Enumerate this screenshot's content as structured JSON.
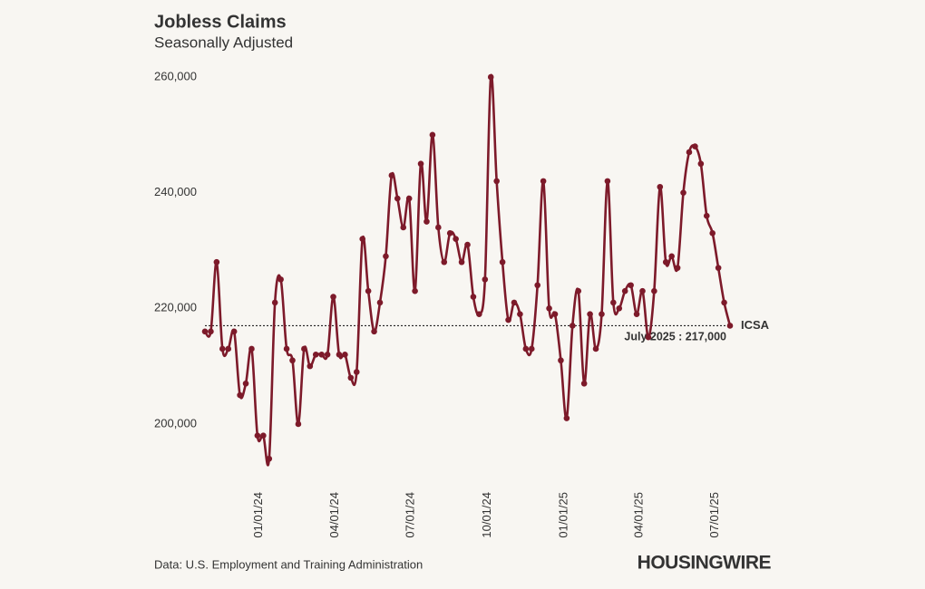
{
  "chart_data": {
    "type": "line",
    "title": "Jobless Claims",
    "subtitle": "Seasonally Adjusted",
    "source": "Data: U.S. Employment and Training Administration",
    "brand": "HOUSINGWIRE",
    "x": [
      "2023-10-28",
      "2023-11-04",
      "2023-11-11",
      "2023-11-18",
      "2023-11-25",
      "2023-12-02",
      "2023-12-09",
      "2023-12-16",
      "2023-12-23",
      "2023-12-30",
      "2024-01-06",
      "2024-01-13",
      "2024-01-20",
      "2024-01-27",
      "2024-02-03",
      "2024-02-10",
      "2024-02-17",
      "2024-02-24",
      "2024-03-02",
      "2024-03-09",
      "2024-03-16",
      "2024-03-23",
      "2024-03-30",
      "2024-04-06",
      "2024-04-13",
      "2024-04-20",
      "2024-04-27",
      "2024-05-04",
      "2024-05-11",
      "2024-05-18",
      "2024-05-25",
      "2024-06-01",
      "2024-06-08",
      "2024-06-15",
      "2024-06-22",
      "2024-06-29",
      "2024-07-06",
      "2024-07-13",
      "2024-07-20",
      "2024-07-27",
      "2024-08-03",
      "2024-08-10",
      "2024-08-17",
      "2024-08-24",
      "2024-08-31",
      "2024-09-07",
      "2024-09-14",
      "2024-09-21",
      "2024-09-28",
      "2024-10-05",
      "2024-10-12",
      "2024-10-19",
      "2024-10-26",
      "2024-11-02",
      "2024-11-09",
      "2024-11-16",
      "2024-11-23",
      "2024-11-30",
      "2024-12-07",
      "2024-12-14",
      "2024-12-21",
      "2024-12-28",
      "2025-01-04",
      "2025-01-11",
      "2025-01-18",
      "2025-01-25",
      "2025-02-01",
      "2025-02-08",
      "2025-02-15",
      "2025-02-22",
      "2025-03-01",
      "2025-03-08",
      "2025-03-15",
      "2025-03-22",
      "2025-03-29",
      "2025-04-05",
      "2025-04-12",
      "2025-04-19",
      "2025-04-26",
      "2025-05-03",
      "2025-05-10",
      "2025-05-17",
      "2025-05-24",
      "2025-05-31",
      "2025-06-07",
      "2025-06-14",
      "2025-06-21",
      "2025-06-28",
      "2025-07-05",
      "2025-07-12",
      "2025-07-19"
    ],
    "series": [
      {
        "name": "ICSA",
        "color": "#7d1a2a",
        "values": [
          216000,
          216000,
          228000,
          213000,
          213000,
          216000,
          205000,
          207000,
          213000,
          198000,
          198000,
          194000,
          221000,
          225000,
          213000,
          211000,
          200000,
          213000,
          210000,
          212000,
          212000,
          212000,
          222000,
          212000,
          212000,
          208000,
          209000,
          232000,
          223000,
          216000,
          221000,
          229000,
          243000,
          239000,
          234000,
          239000,
          223000,
          245000,
          235000,
          250000,
          234000,
          228000,
          233000,
          232000,
          228000,
          231000,
          222000,
          219000,
          225000,
          260000,
          242000,
          228000,
          218000,
          221000,
          219000,
          213000,
          213000,
          224000,
          242000,
          220000,
          219000,
          211000,
          201000,
          217000,
          223000,
          207000,
          219000,
          213000,
          219000,
          242000,
          221000,
          220000,
          223000,
          224000,
          219000,
          223000,
          215000,
          223000,
          241000,
          228000,
          229000,
          227000,
          240000,
          247000,
          248000,
          245000,
          236000,
          233000,
          227000,
          221000,
          217000
        ]
      }
    ],
    "annotation": {
      "label": "July 2025 : 217,000",
      "value": 217000
    },
    "xlim": [
      "2023-10-28",
      "2025-07-19"
    ],
    "xticks": [
      {
        "value": "2024-01-01",
        "label": "01/01/24"
      },
      {
        "value": "2024-04-01",
        "label": "04/01/24"
      },
      {
        "value": "2024-07-01",
        "label": "07/01/24"
      },
      {
        "value": "2024-10-01",
        "label": "10/01/24"
      },
      {
        "value": "2025-01-01",
        "label": "01/01/25"
      },
      {
        "value": "2025-04-01",
        "label": "04/01/25"
      },
      {
        "value": "2025-07-01",
        "label": "07/01/25"
      }
    ],
    "ylim": [
      192000,
      260000
    ],
    "yticks": [
      {
        "value": 200000,
        "label": "200,000"
      },
      {
        "value": 220000,
        "label": "220,000"
      },
      {
        "value": 240000,
        "label": "240,000"
      },
      {
        "value": 260000,
        "label": "260,000"
      }
    ],
    "grid": false
  }
}
